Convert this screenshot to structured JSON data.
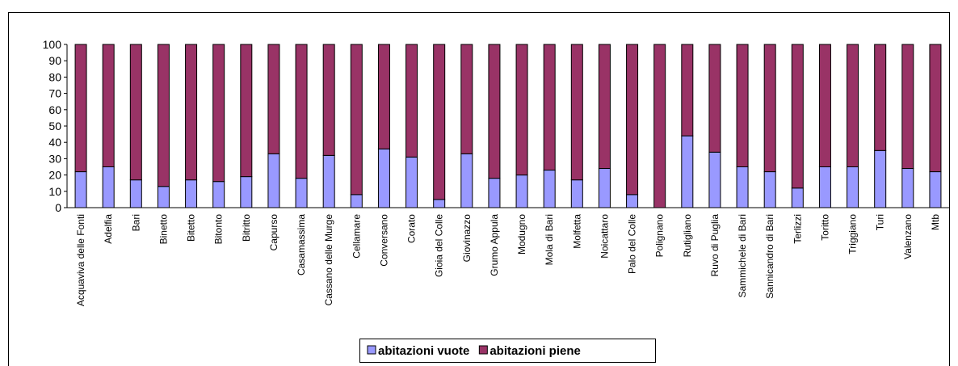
{
  "chart_data": {
    "type": "stacked-bar",
    "categories": [
      "Acquaviva delle Fonti",
      "Adelfia",
      "Bari",
      "Binetto",
      "Bitetto",
      "Bitonto",
      "Bitritto",
      "Capurso",
      "Casamassima",
      "Cassano delle Murge",
      "Cellamare",
      "Conversano",
      "Corato",
      "Gioia del Colle",
      "Giovinazzo",
      "Grumo Appula",
      "Modugno",
      "Mola di Bari",
      "Molfetta",
      "Noicattaro",
      "Palo del Colle",
      "Polignano",
      "Rutigliano",
      "Ruvo di Puglia",
      "Sammichele di Bari",
      "Sannicandro di Bari",
      "Terlizzi",
      "Toritto",
      "Triggiano",
      "Turi",
      "Valenzano",
      "Mtb"
    ],
    "series": [
      {
        "name": "abitazioni vuote",
        "color": "#9999ff",
        "values": [
          22,
          25,
          17,
          13,
          17,
          16,
          19,
          33,
          18,
          32,
          8,
          36,
          31,
          5,
          33,
          18,
          20,
          23,
          17,
          24,
          8,
          0,
          44,
          34,
          25,
          22,
          12,
          25,
          25,
          35,
          24,
          22
        ]
      },
      {
        "name": "abitazioni piene",
        "color": "#993366",
        "values": [
          78,
          75,
          83,
          87,
          83,
          84,
          81,
          67,
          82,
          68,
          92,
          64,
          69,
          95,
          67,
          82,
          80,
          77,
          83,
          76,
          92,
          100,
          56,
          66,
          75,
          78,
          88,
          75,
          75,
          65,
          76,
          78
        ]
      }
    ],
    "ylim": [
      0,
      100
    ],
    "yticks": [
      0,
      10,
      20,
      30,
      40,
      50,
      60,
      70,
      80,
      90,
      100
    ],
    "legend": "bottom"
  }
}
